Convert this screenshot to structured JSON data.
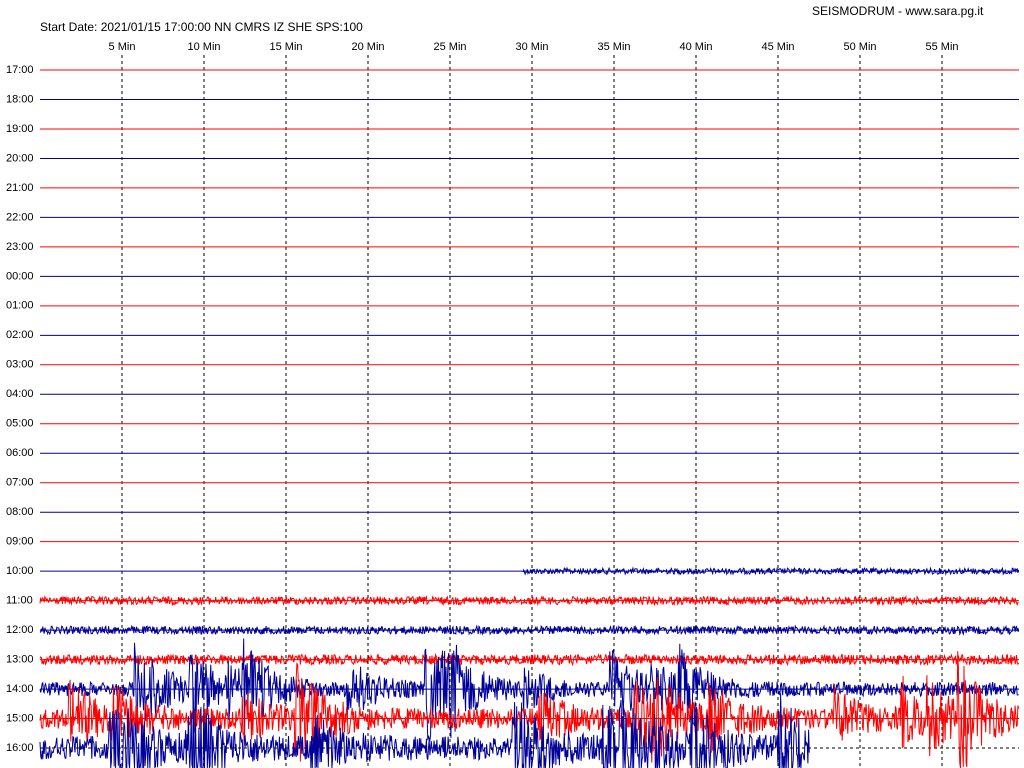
{
  "header": {
    "site": "SEISMODRUM - www.sara.pg.it",
    "start": "Start Date: 2021/01/15 17:00:00 NN CMRS IZ SHE SPS:100"
  },
  "minute_labels": [
    "5 Min",
    "10 Min",
    "15 Min",
    "20 Min",
    "25 Min",
    "30 Min",
    "35 Min",
    "40 Min",
    "45 Min",
    "50 Min",
    "55 Min"
  ],
  "hour_labels": [
    "17:00",
    "18:00",
    "19:00",
    "20:00",
    "21:00",
    "22:00",
    "23:00",
    "00:00",
    "01:00",
    "02:00",
    "03:00",
    "04:00",
    "05:00",
    "06:00",
    "07:00",
    "08:00",
    "09:00",
    "10:00",
    "11:00",
    "12:00",
    "13:00",
    "14:00",
    "15:00",
    "16:00"
  ]
}
